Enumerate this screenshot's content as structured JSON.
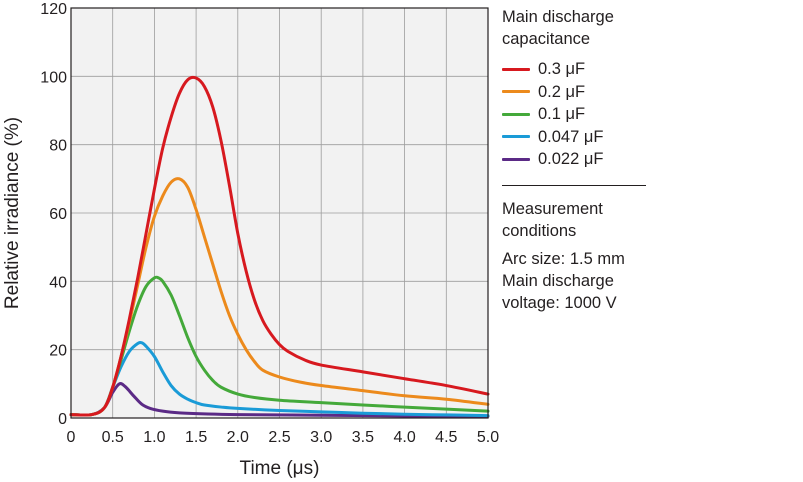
{
  "chart_data": {
    "type": "line",
    "xlabel": "Time (μs)",
    "ylabel": "Relative irradiance (%)",
    "xlim": [
      0,
      5.0
    ],
    "ylim": [
      0,
      120
    ],
    "x_ticks": [
      "0",
      "0.5",
      "1.0",
      "1.5",
      "2.0",
      "2.5",
      "3.0",
      "3.5",
      "4.0",
      "4.5",
      "5.0"
    ],
    "y_ticks": [
      "0",
      "20",
      "40",
      "60",
      "80",
      "100",
      "120"
    ],
    "grid": true,
    "legend_title": "Main discharge capacitance",
    "legend_position": "right",
    "series": [
      {
        "name": "0.3 μF",
        "color": "#d7191f",
        "points": [
          [
            0,
            1
          ],
          [
            0.25,
            1
          ],
          [
            0.4,
            3
          ],
          [
            0.5,
            9
          ],
          [
            0.6,
            18
          ],
          [
            0.7,
            29
          ],
          [
            0.8,
            41
          ],
          [
            0.9,
            54
          ],
          [
            1.0,
            67
          ],
          [
            1.1,
            79
          ],
          [
            1.2,
            88
          ],
          [
            1.3,
            95
          ],
          [
            1.4,
            99
          ],
          [
            1.5,
            99.5
          ],
          [
            1.6,
            97
          ],
          [
            1.7,
            91
          ],
          [
            1.8,
            81
          ],
          [
            1.9,
            68
          ],
          [
            2.0,
            54
          ],
          [
            2.1,
            43
          ],
          [
            2.2,
            34.5
          ],
          [
            2.3,
            28.5
          ],
          [
            2.4,
            24.5
          ],
          [
            2.5,
            21.5
          ],
          [
            2.6,
            19.5
          ],
          [
            2.8,
            17
          ],
          [
            3.0,
            15.5
          ],
          [
            3.5,
            13.5
          ],
          [
            4.0,
            11.5
          ],
          [
            4.5,
            9.5
          ],
          [
            5.0,
            7
          ]
        ]
      },
      {
        "name": "0.2 μF",
        "color": "#ec8a1c",
        "points": [
          [
            0,
            1
          ],
          [
            0.25,
            1
          ],
          [
            0.4,
            3
          ],
          [
            0.5,
            9
          ],
          [
            0.6,
            18
          ],
          [
            0.7,
            28
          ],
          [
            0.8,
            39
          ],
          [
            0.9,
            50
          ],
          [
            1.0,
            59
          ],
          [
            1.1,
            65
          ],
          [
            1.2,
            69
          ],
          [
            1.3,
            70
          ],
          [
            1.4,
            67.5
          ],
          [
            1.5,
            61
          ],
          [
            1.6,
            53
          ],
          [
            1.7,
            45
          ],
          [
            1.8,
            37
          ],
          [
            1.9,
            30
          ],
          [
            2.0,
            24.5
          ],
          [
            2.1,
            20
          ],
          [
            2.2,
            16.5
          ],
          [
            2.3,
            14
          ],
          [
            2.5,
            12
          ],
          [
            2.75,
            10.5
          ],
          [
            3.0,
            9.5
          ],
          [
            3.5,
            8
          ],
          [
            4.0,
            6.5
          ],
          [
            4.5,
            5.5
          ],
          [
            5.0,
            4
          ]
        ]
      },
      {
        "name": "0.1 μF",
        "color": "#44a93a",
        "points": [
          [
            0,
            1
          ],
          [
            0.25,
            1
          ],
          [
            0.4,
            3
          ],
          [
            0.5,
            9
          ],
          [
            0.6,
            17
          ],
          [
            0.7,
            25.5
          ],
          [
            0.8,
            33
          ],
          [
            0.9,
            38.5
          ],
          [
            1.0,
            41
          ],
          [
            1.05,
            41
          ],
          [
            1.1,
            40
          ],
          [
            1.2,
            36
          ],
          [
            1.3,
            30
          ],
          [
            1.4,
            23.5
          ],
          [
            1.5,
            18
          ],
          [
            1.6,
            14
          ],
          [
            1.7,
            11
          ],
          [
            1.8,
            9
          ],
          [
            2.0,
            7
          ],
          [
            2.2,
            6
          ],
          [
            2.5,
            5.2
          ],
          [
            3.0,
            4.5
          ],
          [
            3.5,
            3.8
          ],
          [
            4.0,
            3.2
          ],
          [
            4.5,
            2.6
          ],
          [
            5.0,
            2
          ]
        ]
      },
      {
        "name": "0.047 μF",
        "color": "#1a9bd7",
        "points": [
          [
            0,
            1
          ],
          [
            0.25,
            1
          ],
          [
            0.4,
            3
          ],
          [
            0.5,
            9
          ],
          [
            0.6,
            15
          ],
          [
            0.7,
            19.5
          ],
          [
            0.8,
            21.8
          ],
          [
            0.85,
            22
          ],
          [
            0.9,
            21
          ],
          [
            1.0,
            18
          ],
          [
            1.1,
            13.5
          ],
          [
            1.2,
            9.5
          ],
          [
            1.3,
            7
          ],
          [
            1.4,
            5.5
          ],
          [
            1.5,
            4.5
          ],
          [
            1.6,
            3.8
          ],
          [
            1.8,
            3.2
          ],
          [
            2.0,
            2.8
          ],
          [
            2.5,
            2.2
          ],
          [
            3.0,
            1.8
          ],
          [
            3.5,
            1.4
          ],
          [
            4.0,
            1.1
          ],
          [
            4.5,
            0.9
          ],
          [
            5.0,
            0.7
          ]
        ]
      },
      {
        "name": "0.022 μF",
        "color": "#5b2a86",
        "points": [
          [
            0,
            1
          ],
          [
            0.25,
            1
          ],
          [
            0.4,
            3
          ],
          [
            0.5,
            7.5
          ],
          [
            0.58,
            10
          ],
          [
            0.65,
            9.2
          ],
          [
            0.75,
            6.5
          ],
          [
            0.85,
            4
          ],
          [
            0.95,
            2.8
          ],
          [
            1.1,
            2
          ],
          [
            1.3,
            1.5
          ],
          [
            1.6,
            1.2
          ],
          [
            2.0,
            1
          ],
          [
            3.0,
            0.8
          ],
          [
            4.0,
            0.6
          ],
          [
            5.0,
            0.5
          ]
        ]
      }
    ]
  },
  "conditions": {
    "title": "Measurement conditions",
    "arc_size": "Arc size: 1.5 mm",
    "voltage": "Main discharge voltage: 1000 V"
  }
}
